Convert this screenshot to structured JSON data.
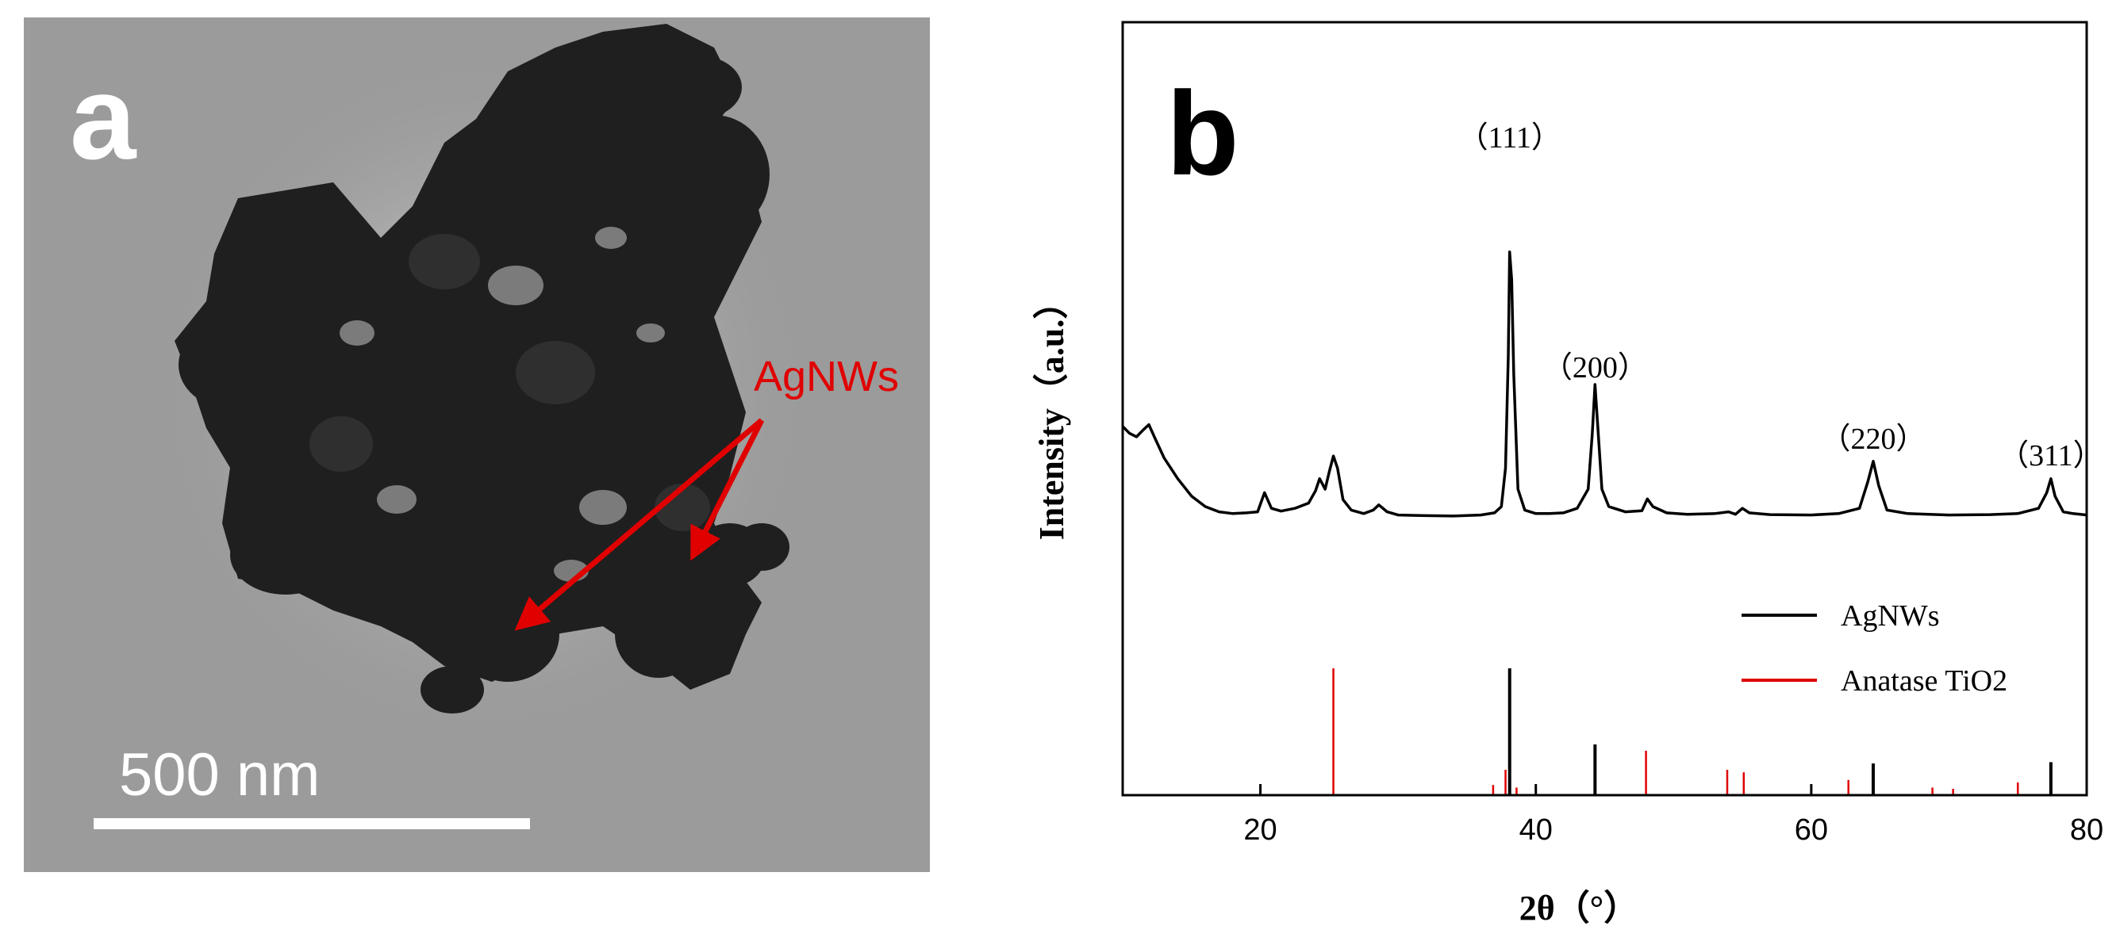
{
  "panel_a": {
    "panel_letter": "a",
    "annotation": "AgNWs",
    "scale_bar_label": "500 nm",
    "colors": {
      "background": "#9b9b9b",
      "particles": "#1f1f1f",
      "annotation": "#e00000",
      "label": "#ffffff"
    }
  },
  "chart_data": {
    "type": "line",
    "panel_letter": "b",
    "xlabel": "2θ（°）",
    "ylabel": "Intensity（a.u.）",
    "xlim": [
      10,
      80
    ],
    "x_ticks": [
      20,
      40,
      60,
      80
    ],
    "grid": false,
    "legend_position": "bottom-right",
    "series": [
      {
        "name": "AgNWs",
        "color": "#000000",
        "kind": "reference-sticks",
        "x": [
          38.1,
          44.3,
          64.5,
          77.4
        ],
        "values": [
          100,
          40,
          25,
          26
        ]
      },
      {
        "name": "Anatase TiO2",
        "color": "#e00000",
        "kind": "reference-sticks",
        "x": [
          25.3,
          36.9,
          37.8,
          38.6,
          48.0,
          53.9,
          55.1,
          62.7,
          68.8,
          70.3,
          75.0
        ],
        "values": [
          100,
          8,
          20,
          6,
          35,
          20,
          18,
          12,
          6,
          5,
          10
        ]
      },
      {
        "kind": "measured",
        "color": "#000000",
        "x": [
          10,
          10.5,
          11,
          11.5,
          11.9,
          12.3,
          13,
          14,
          15,
          16,
          17,
          18,
          19,
          19.8,
          20.3,
          20.8,
          21.5,
          22.5,
          23.5,
          24.0,
          24.3,
          24.7,
          25.0,
          25.3,
          25.6,
          26.0,
          26.6,
          27.5,
          28.2,
          28.6,
          29.2,
          30,
          32,
          34,
          36,
          37.0,
          37.5,
          37.8,
          38.0,
          38.1,
          38.25,
          38.4,
          38.7,
          39.2,
          40,
          41,
          42,
          43,
          43.8,
          44.1,
          44.3,
          44.5,
          44.8,
          45.3,
          46.5,
          47.7,
          48.1,
          48.5,
          49.5,
          51,
          53,
          54.0,
          54.5,
          55.0,
          55.5,
          57,
          60,
          62,
          63.5,
          64.1,
          64.5,
          64.9,
          65.5,
          67,
          70,
          73,
          75,
          76.5,
          77.1,
          77.4,
          77.7,
          78.3,
          79,
          80
        ],
        "values": [
          40,
          38,
          37,
          39,
          40.5,
          37,
          31,
          25,
          20,
          17,
          15.5,
          15,
          15.2,
          15.5,
          21,
          16.5,
          15.7,
          16.5,
          18,
          21.5,
          25,
          22,
          27,
          31.5,
          28,
          19,
          16,
          15,
          16,
          17.5,
          15.5,
          14.6,
          14.4,
          14.3,
          14.6,
          15.2,
          17,
          28,
          60,
          90,
          82,
          55,
          22,
          16,
          15,
          15,
          15.2,
          16.5,
          22,
          38,
          52,
          40,
          22,
          17,
          15.5,
          15.8,
          19.2,
          17,
          15.2,
          14.8,
          15,
          15.5,
          14.8,
          16.5,
          15.2,
          14.7,
          14.6,
          15,
          16.5,
          24,
          30,
          23,
          16,
          15,
          14.6,
          14.7,
          15,
          16.5,
          21,
          25,
          20,
          15.5,
          15,
          14.6
        ]
      }
    ],
    "annotations": [
      {
        "text": "（111）",
        "x": 38.1
      },
      {
        "text": "（200）",
        "x": 44.3
      },
      {
        "text": "（220）",
        "x": 64.5
      },
      {
        "text": "（311）",
        "x": 77.4
      }
    ]
  }
}
